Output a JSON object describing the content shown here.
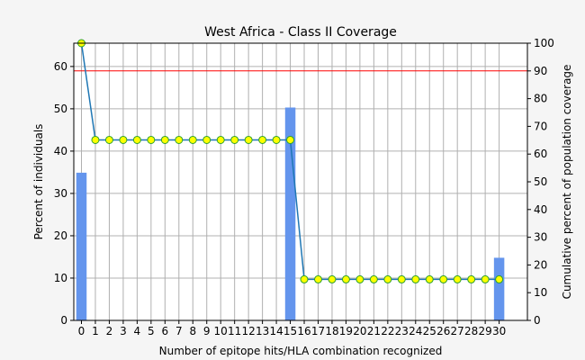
{
  "chart_data": {
    "type": "bar+line",
    "title": "West Africa - Class II Coverage",
    "xlabel": "Number of epitope hits/HLA combination recognized",
    "ylabel_left": "Percent of individuals",
    "ylabel_right": "Cumulative percent of population coverage",
    "categories": [
      "0",
      "1",
      "2",
      "3",
      "4",
      "5",
      "6",
      "7",
      "8",
      "9",
      "10",
      "11",
      "12",
      "13",
      "14",
      "15",
      "16",
      "17",
      "18",
      "19",
      "20",
      "21",
      "22",
      "23",
      "24",
      "25",
      "26",
      "27",
      "28",
      "29",
      "30"
    ],
    "bars": {
      "axis": "left",
      "values": [
        34.9,
        0,
        0,
        0,
        0,
        0,
        0,
        0,
        0,
        0,
        0,
        0,
        0,
        0,
        0,
        50.3,
        0,
        0,
        0,
        0,
        0,
        0,
        0,
        0,
        0,
        0,
        0,
        0,
        0,
        0,
        14.8
      ],
      "color": "#6495ed"
    },
    "cumulative": {
      "axis": "right",
      "values": [
        100,
        65.1,
        65.1,
        65.1,
        65.1,
        65.1,
        65.1,
        65.1,
        65.1,
        65.1,
        65.1,
        65.1,
        65.1,
        65.1,
        65.1,
        65.1,
        14.8,
        14.8,
        14.8,
        14.8,
        14.8,
        14.8,
        14.8,
        14.8,
        14.8,
        14.8,
        14.8,
        14.8,
        14.8,
        14.8,
        14.8
      ],
      "line_color": "#1f77b4",
      "marker_fill": "#ffff00",
      "marker_edge": "#2ca02c"
    },
    "reference_line": {
      "axis": "right",
      "value": 90,
      "color": "#ff0000"
    },
    "ylim_left": [
      0,
      65.5
    ],
    "ylim_right": [
      0,
      100
    ],
    "yticks_left": [
      0,
      10,
      20,
      30,
      40,
      50,
      60
    ],
    "yticks_right": [
      0,
      10,
      20,
      30,
      40,
      50,
      60,
      70,
      80,
      90,
      100
    ],
    "grid": true
  }
}
